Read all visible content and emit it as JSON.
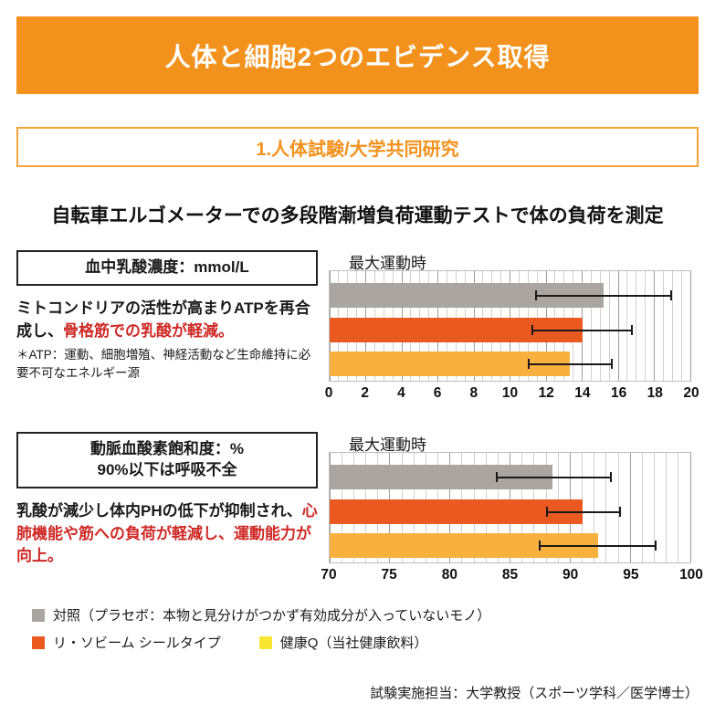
{
  "page": {
    "title": "人体と細胞2つのエビデンス取得",
    "section_header": "1.人体試験/大学共同研究",
    "test_title": "自転車エルゴメーターでの多段階漸増負荷運動テストで体の負荷を測定",
    "footer": "試験実施担当：大学教授（スポーツ学科／医学博士）"
  },
  "colors": {
    "banner_orange": "#F2921D",
    "section_border_orange": "#F5A43B",
    "red_text": "#CE2A26",
    "bar_gray": "#ABA5A2",
    "bar_orange": "#EA5A20",
    "bar_yellow": "#F8B13F",
    "legend_yellow_swatch": "#F7E733",
    "grid_minor": "#D0D0D0",
    "grid_major": "#9D9D9D"
  },
  "sections": [
    {
      "label_box_line1": "血中乳酸濃度：mmol/L",
      "label_box_line2": "",
      "desc_black": "ミトコンドリアの活性が高まりATPを再合成し、",
      "desc_red": "骨格筋での乳酸が軽減。",
      "note": "＊ATP：運動、細胞増殖、神経活動など生命維持に必要不可なエネルギー源",
      "chart_label": "最大運動時"
    },
    {
      "label_box_line1": "動脈血酸素飽和度：%",
      "label_box_line2": "90%以下は呼吸不全",
      "desc_black": "乳酸が減少し体内PHの低下が抑制され、",
      "desc_red": "心肺機能や筋への負荷が軽減し、運動能力が向上。",
      "note": "",
      "chart_label": "最大運動時"
    }
  ],
  "legend": {
    "row1": [
      {
        "color": "#ABA5A2",
        "label": "対照（プラセボ：本物と見分けがつかず有効成分が入っていないモノ）"
      }
    ],
    "row2": [
      {
        "color": "#EA5A20",
        "label": "リ・ソビーム シールタイプ"
      },
      {
        "color": "#F7E733",
        "label": "健康Q（当社健康飲料）"
      }
    ]
  },
  "chart_data": [
    {
      "type": "bar",
      "orientation": "horizontal",
      "title": "最大運動時",
      "measure": "血中乳酸濃度：mmol/L",
      "categories": [
        "対照（プラセボ）",
        "リ・ソビーム シールタイプ",
        "健康Q（当社健康飲料）"
      ],
      "values": [
        15.2,
        14.0,
        13.3
      ],
      "error_low": [
        11.4,
        11.2,
        11.0
      ],
      "error_high": [
        19.0,
        16.8,
        15.7
      ],
      "bar_colors": [
        "#ABA5A2",
        "#EA5A20",
        "#F8B13F"
      ],
      "xlim": [
        0,
        20
      ],
      "x_major_step": 2,
      "x_minor_step": 0.5,
      "tick_labels": [
        "0",
        "2",
        "4",
        "6",
        "8",
        "10",
        "12",
        "14",
        "16",
        "18",
        "20"
      ],
      "grid": true,
      "legend_position": "below"
    },
    {
      "type": "bar",
      "orientation": "horizontal",
      "title": "最大運動時",
      "measure": "動脈血酸素飽和度：%（90%以下は呼吸不全）",
      "categories": [
        "対照（プラセボ）",
        "リ・ソビーム シールタイプ",
        "健康Q（当社健康飲料）"
      ],
      "values": [
        88.5,
        91.0,
        92.3
      ],
      "error_low": [
        83.8,
        88.0,
        87.4
      ],
      "error_high": [
        93.5,
        94.2,
        97.2
      ],
      "bar_colors": [
        "#ABA5A2",
        "#EA5A20",
        "#F8B13F"
      ],
      "xlim": [
        70,
        100
      ],
      "x_major_step": 5,
      "x_minor_step": 1,
      "tick_labels": [
        "70",
        "75",
        "80",
        "85",
        "90",
        "95",
        "100"
      ],
      "grid": true,
      "legend_position": "below"
    }
  ]
}
